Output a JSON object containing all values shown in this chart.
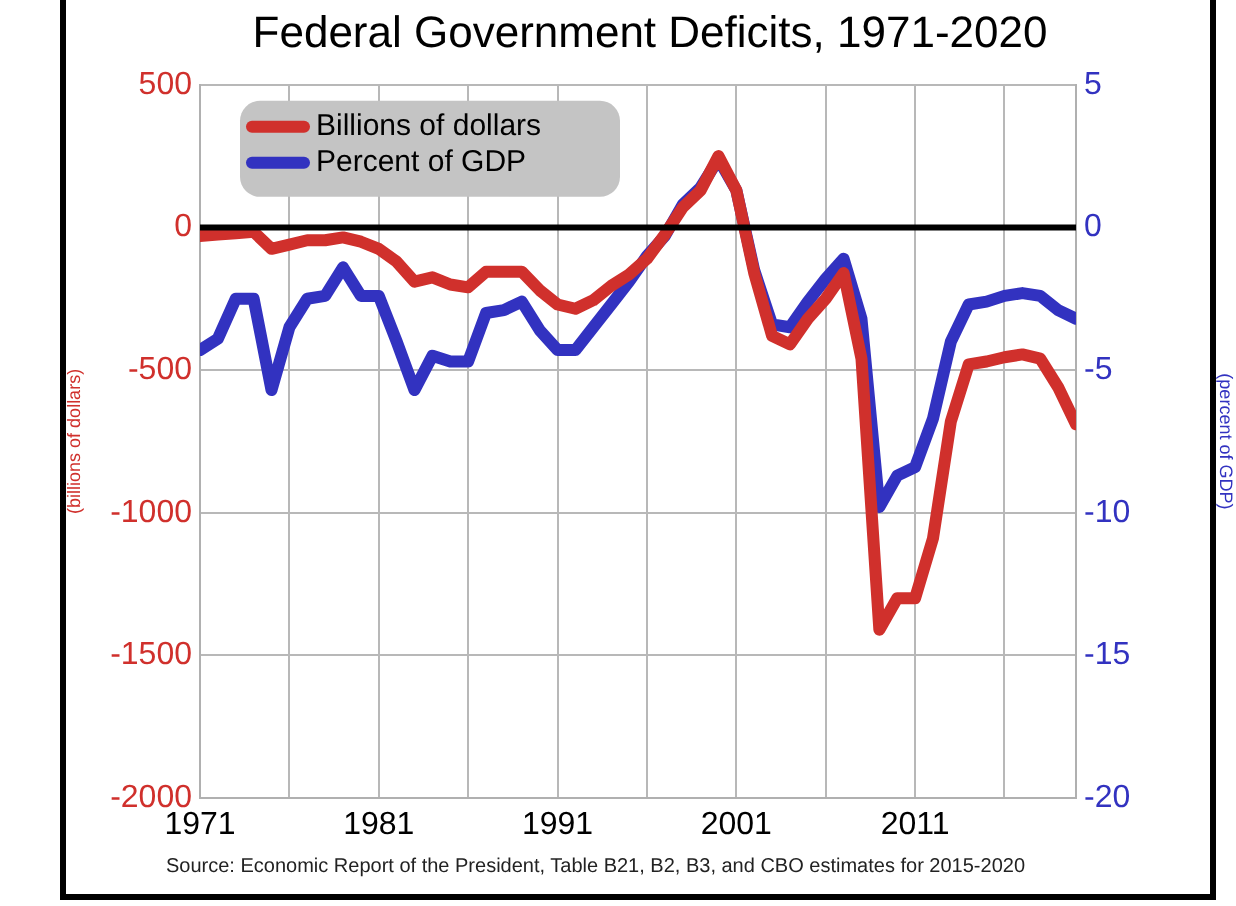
{
  "chart_data": {
    "type": "line",
    "title": "Federal Government Deficits, 1971-2020",
    "ylabel": "(billions of dollars)",
    "y2label": "(percent of GDP)",
    "annotations": [
      "Source: Economic Report of the President, Table B21, B2, B3, and CBO estimates for 2015-2020"
    ],
    "x": [
      1971,
      1972,
      1973,
      1974,
      1975,
      1976,
      1977,
      1978,
      1979,
      1980,
      1981,
      1982,
      1983,
      1984,
      1985,
      1986,
      1987,
      1988,
      1989,
      1990,
      1991,
      1992,
      1993,
      1994,
      1995,
      1996,
      1997,
      1998,
      1999,
      2000,
      2001,
      2002,
      2003,
      2004,
      2005,
      2006,
      2007,
      2008,
      2009,
      2010,
      2011,
      2012,
      2013,
      2014,
      2015,
      2016,
      2017,
      2018,
      2019,
      2020
    ],
    "series": [
      {
        "name": "Billions of dollars",
        "color": "#d0302c",
        "values": [
          -30,
          -25,
          -20,
          -15,
          -75,
          -60,
          -45,
          -45,
          -35,
          -50,
          -75,
          -120,
          -190,
          -175,
          -200,
          -210,
          -155,
          -155,
          -155,
          -220,
          -270,
          -285,
          -255,
          -205,
          -165,
          -110,
          -25,
          70,
          130,
          250,
          130,
          -160,
          -380,
          -410,
          -320,
          -250,
          -160,
          -460,
          -1410,
          -1300,
          -1300,
          -1090,
          -680,
          -480,
          -470,
          -455,
          -445,
          -460,
          -560,
          -690
        ]
      },
      {
        "name": "Percent of GDP",
        "color": "#3232c0",
        "axis": "y2",
        "values": [
          -4.3,
          -3.9,
          -2.5,
          -2.5,
          -5.7,
          -3.5,
          -2.5,
          -2.4,
          -1.4,
          -2.4,
          -2.4,
          -4.0,
          -5.7,
          -4.5,
          -4.7,
          -4.7,
          -3.0,
          -2.9,
          -2.6,
          -3.6,
          -4.3,
          -4.3,
          -3.5,
          -2.7,
          -1.9,
          -1.0,
          -0.3,
          0.8,
          1.4,
          2.4,
          1.3,
          -1.5,
          -3.4,
          -3.5,
          -2.6,
          -1.8,
          -1.1,
          -3.2,
          -9.8,
          -8.7,
          -8.4,
          -6.7,
          -4.0,
          -2.7,
          -2.6,
          -2.4,
          -2.3,
          -2.4,
          -2.9,
          -3.2
        ]
      }
    ],
    "xlim": [
      1971,
      2020
    ],
    "xticks": [
      1971,
      {
        "value": 1976,
        "label": null
      },
      1981,
      {
        "value": 1986,
        "label": null
      },
      1991,
      {
        "value": 1996,
        "label": null
      },
      2001,
      {
        "value": 2006,
        "label": null
      },
      2011,
      {
        "value": 2016,
        "label": null
      }
    ],
    "ylim": [
      -2000,
      500
    ],
    "yticks": [
      -2000,
      -1500,
      -1000,
      -500,
      0,
      500
    ],
    "y2lim": [
      -20,
      5
    ],
    "y2ticks": [
      -20,
      -15,
      -10,
      -5,
      0,
      5
    ],
    "ref_lines": [
      {
        "axis": "y",
        "value": 0,
        "color": "#000000"
      }
    ],
    "grid": true,
    "legend": "top left",
    "marker": "none",
    "line_style": "solid"
  }
}
